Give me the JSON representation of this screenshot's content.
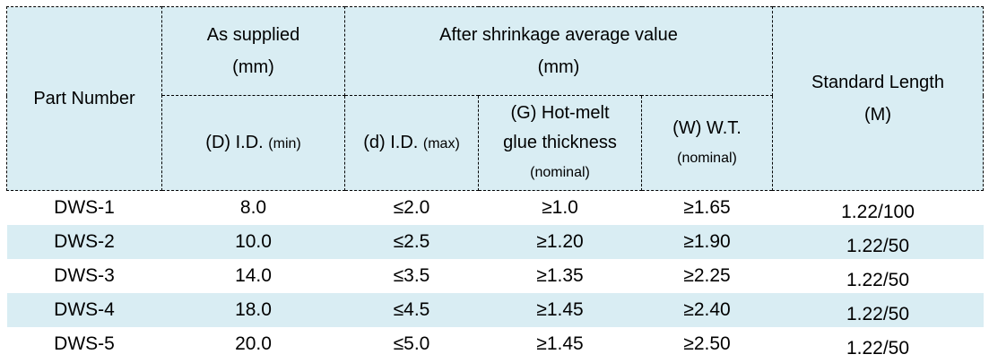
{
  "table": {
    "header": {
      "part_number": "Part Number",
      "as_supplied": {
        "line1": "As supplied",
        "line2": "(mm)"
      },
      "after_shrinkage": {
        "line1": "After shrinkage average value",
        "line2": "(mm)"
      },
      "standard_length": {
        "line1": "Standard Length",
        "line2": "(M)"
      },
      "sub_d_id": {
        "main": "(D) I.D.",
        "small": "(min)"
      },
      "sub_d_id_max": {
        "main": "(d) I.D.",
        "small": "(max)"
      },
      "sub_glue": {
        "line1": "(G) Hot-melt",
        "line2": "glue thickness",
        "small": "(nominal)"
      },
      "sub_wt": {
        "main": "(W) W.T.",
        "small": "(nominal)"
      }
    },
    "rows": [
      {
        "part": "DWS-1",
        "id_min": "8.0",
        "id_max": "≤2.0",
        "glue": "≥1.0",
        "wt": "≥1.65",
        "length": "1.22/100"
      },
      {
        "part": "DWS-2",
        "id_min": "10.0",
        "id_max": "≤2.5",
        "glue": "≥1.20",
        "wt": "≥1.90",
        "length": "1.22/50"
      },
      {
        "part": "DWS-3",
        "id_min": "14.0",
        "id_max": "≤3.5",
        "glue": "≥1.35",
        "wt": "≥2.25",
        "length": "1.22/50"
      },
      {
        "part": "DWS-4",
        "id_min": "18.0",
        "id_max": "≤4.5",
        "glue": "≥1.45",
        "wt": "≥2.40",
        "length": "1.22/50"
      },
      {
        "part": "DWS-5",
        "id_min": "20.0",
        "id_max": "≤5.0",
        "glue": "≥1.45",
        "wt": "≥2.50",
        "length": "1.22/50"
      }
    ],
    "colors": {
      "header_bg": "#d9edf3",
      "stripe_bg": "#d9edf3",
      "border": "#000000",
      "text": "#000000"
    }
  }
}
